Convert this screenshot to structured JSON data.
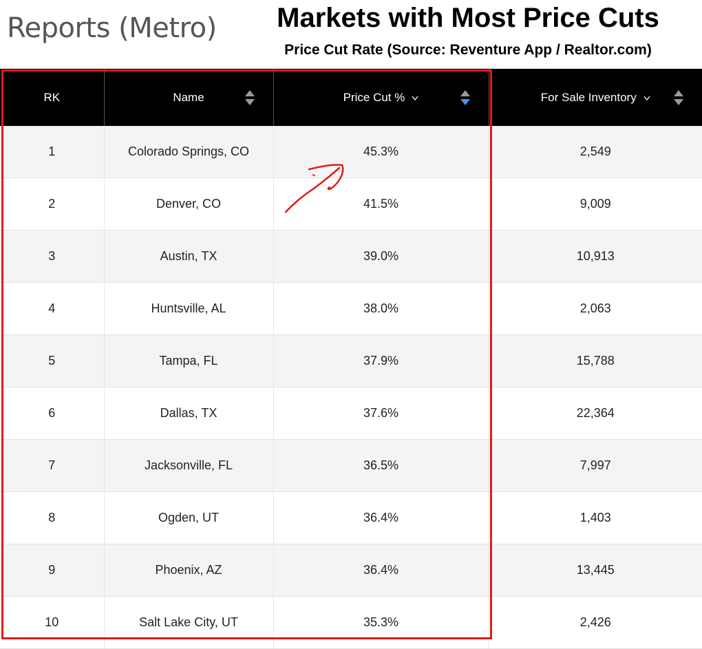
{
  "page": {
    "heading": "Reports (Metro)",
    "overlay_title": "Markets with Most Price Cuts",
    "overlay_subtitle": "Price Cut Rate (Source: Reventure App / Realtor.com)"
  },
  "table": {
    "columns": [
      {
        "label": "RK",
        "sortable": false
      },
      {
        "label": "Name",
        "sortable": true
      },
      {
        "label": "Price Cut %",
        "sortable": true,
        "sorted": "descending"
      },
      {
        "label": "For Sale Inventory",
        "sortable": true
      }
    ],
    "rows": [
      {
        "rank": "1",
        "name": "Colorado Springs, CO",
        "price_cut": "45.3%",
        "inventory": "2,549"
      },
      {
        "rank": "2",
        "name": "Denver, CO",
        "price_cut": "41.5%",
        "inventory": "9,009"
      },
      {
        "rank": "3",
        "name": "Austin, TX",
        "price_cut": "39.0%",
        "inventory": "10,913"
      },
      {
        "rank": "4",
        "name": "Huntsville, AL",
        "price_cut": "38.0%",
        "inventory": "2,063"
      },
      {
        "rank": "5",
        "name": "Tampa, FL",
        "price_cut": "37.9%",
        "inventory": "15,788"
      },
      {
        "rank": "6",
        "name": "Dallas, TX",
        "price_cut": "37.6%",
        "inventory": "22,364"
      },
      {
        "rank": "7",
        "name": "Jacksonville, FL",
        "price_cut": "36.5%",
        "inventory": "7,997"
      },
      {
        "rank": "8",
        "name": "Ogden, UT",
        "price_cut": "36.4%",
        "inventory": "1,403"
      },
      {
        "rank": "9",
        "name": "Phoenix, AZ",
        "price_cut": "36.4%",
        "inventory": "13,445"
      },
      {
        "rank": "10",
        "name": "Salt Lake City, UT",
        "price_cut": "35.3%",
        "inventory": "2,426"
      }
    ]
  },
  "icons": {
    "sort": "sort-updown-icon",
    "sort_active": "sort-desc-active-icon",
    "dropdown": "chevron-down-icon",
    "annotation": "hand-drawn-arrow-icon"
  },
  "colors": {
    "header_bg": "#000000",
    "header_text": "#ffffff",
    "row_alt": "#f4f4f4",
    "highlight": "#e01b1b",
    "sort_active": "#4a8ff0",
    "sort_inactive": "#9a9a9a"
  }
}
